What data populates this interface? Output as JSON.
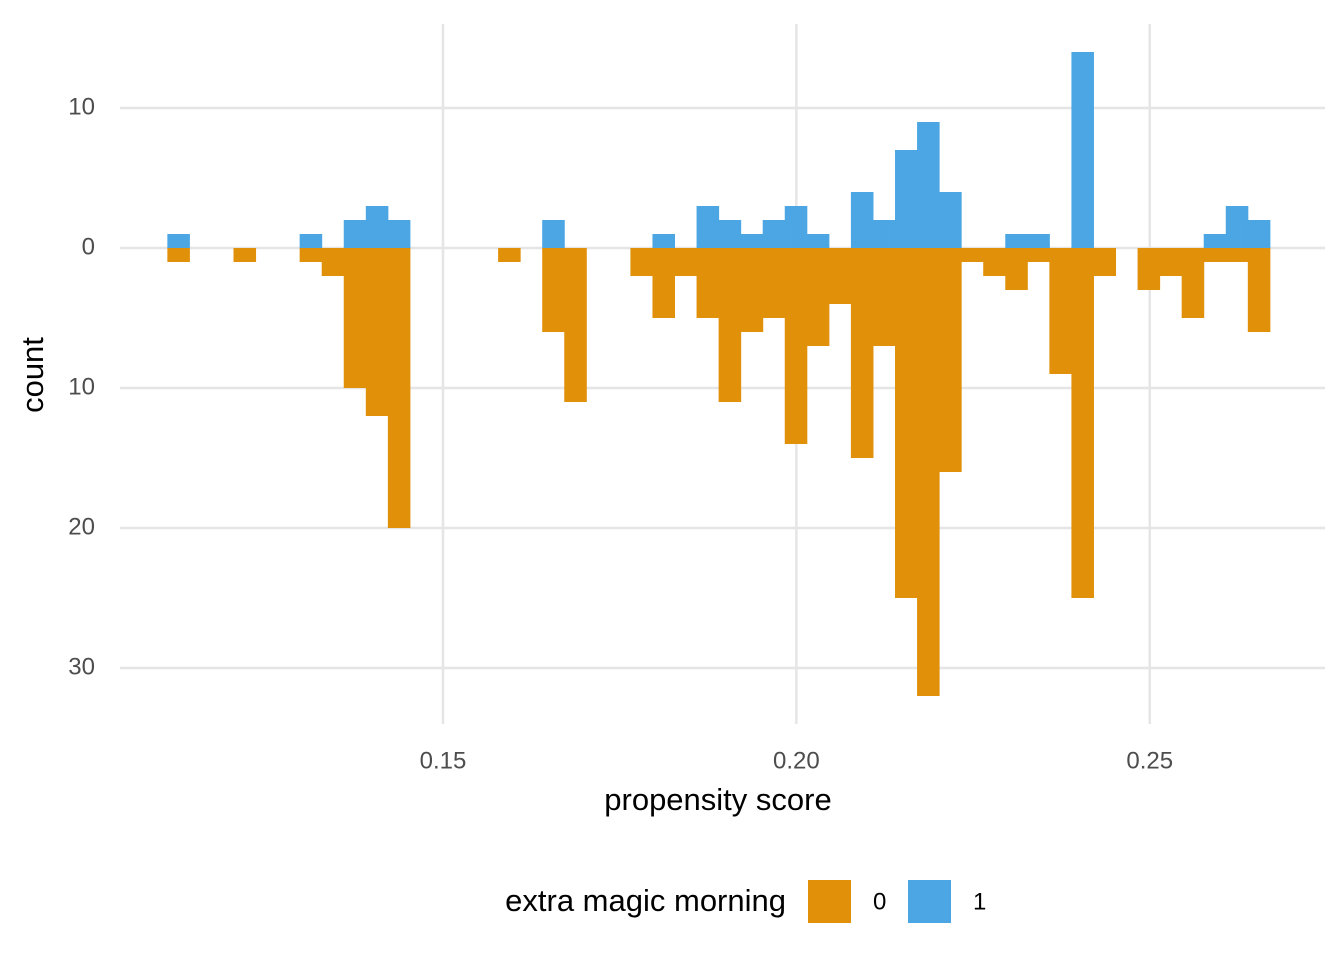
{
  "chart_data": {
    "type": "histogram",
    "x_label": "propensity score",
    "y_label": "count",
    "legend_title": "extra magic morning",
    "legend_position": "bottom",
    "grid": true,
    "xlim": [
      0.1043,
      0.2748
    ],
    "ylim": [
      -34,
      16
    ],
    "xticks": [
      {
        "value": 0.15,
        "label": "0.15"
      },
      {
        "value": 0.2,
        "label": "0.20"
      },
      {
        "value": 0.25,
        "label": "0.25"
      }
    ],
    "yticks": [
      {
        "value": -30,
        "label": "30"
      },
      {
        "value": -20,
        "label": "20"
      },
      {
        "value": -10,
        "label": "10"
      },
      0,
      10
    ],
    "bins": [
      0.111,
      0.11412,
      0.11724,
      0.12036,
      0.12348,
      0.1266,
      0.12972,
      0.13284,
      0.13596,
      0.13908,
      0.1422,
      0.14532,
      0.14844,
      0.15156,
      0.15468,
      0.1578,
      0.16092,
      0.16404,
      0.16716,
      0.17028,
      0.1734,
      0.17652,
      0.17964,
      0.18276,
      0.18588,
      0.189,
      0.19212,
      0.19524,
      0.19836,
      0.20148,
      0.2046,
      0.20772,
      0.21084,
      0.21396,
      0.21708,
      0.2202,
      0.22332,
      0.22644,
      0.22956,
      0.23268,
      0.2358,
      0.23892,
      0.24204,
      0.24516,
      0.24828,
      0.2514,
      0.25452,
      0.25764,
      0.26076,
      0.26388,
      0.267
    ],
    "series": [
      {
        "name": "0",
        "color": "#E1900A",
        "values": [
          -1,
          0,
          0,
          -1,
          0,
          0,
          -1,
          -2,
          -10,
          -12,
          -20,
          0,
          0,
          0,
          0,
          -1,
          0,
          -6,
          -11,
          0,
          0,
          -2,
          -5,
          -2,
          -5,
          -11,
          -6,
          -5,
          -14,
          -7,
          -4,
          -15,
          -7,
          -25,
          -32,
          -16,
          -1,
          -2,
          -3,
          -1,
          -9,
          -25,
          -2,
          0,
          -3,
          -2,
          -5,
          -1,
          -1,
          -6
        ]
      },
      {
        "name": "1",
        "color": "#4BA6E3",
        "values": [
          1,
          0,
          0,
          0,
          0,
          0,
          1,
          0,
          2,
          3,
          2,
          0,
          0,
          0,
          0,
          0,
          0,
          2,
          0,
          0,
          0,
          0,
          1,
          0,
          3,
          2,
          1,
          2,
          3,
          1,
          0,
          4,
          2,
          7,
          9,
          4,
          0,
          0,
          1,
          1,
          0,
          14,
          0,
          0,
          0,
          0,
          0,
          1,
          3,
          2
        ]
      }
    ]
  }
}
